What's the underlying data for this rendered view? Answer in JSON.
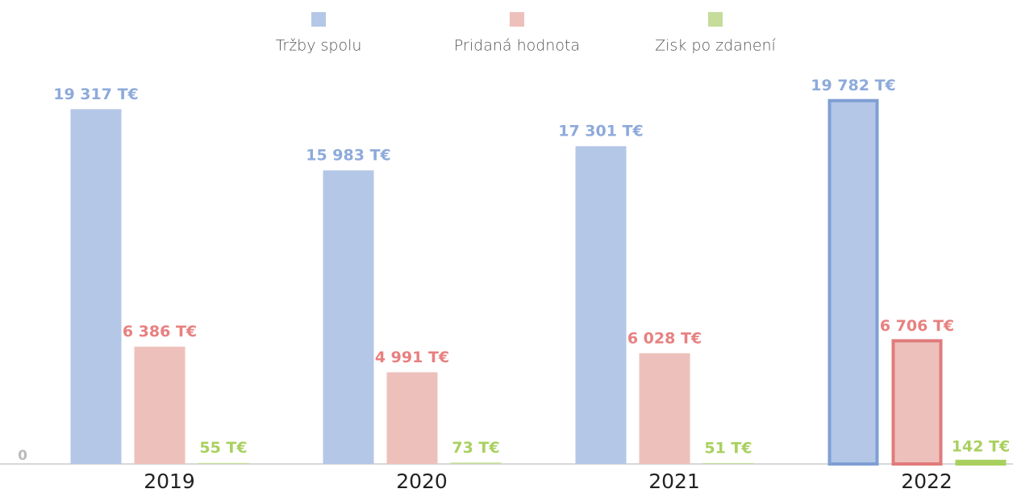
{
  "chart_data": {
    "type": "bar",
    "categories": [
      "2019",
      "2020",
      "2021",
      "2022"
    ],
    "series": [
      {
        "name": "Tržby spolu",
        "color": "#b4c7e7",
        "label_color": "#8eaadb",
        "edge_color": "#7f9fd3",
        "values": [
          19317,
          15983,
          17301,
          19782
        ],
        "value_labels": [
          "19 317 T€",
          "15 983 T€",
          "17 301 T€",
          "19 782 T€"
        ]
      },
      {
        "name": "Pridaná hodnota",
        "color": "#eec0bb",
        "label_color": "#e88080",
        "edge_color": "#e07b7b",
        "values": [
          6386,
          4991,
          6028,
          6706
        ],
        "value_labels": [
          "6 386 T€",
          "4 991 T€",
          "6 028 T€",
          "6 706 T€"
        ]
      },
      {
        "name": "Zisk po zdanení",
        "color": "#c5dc9a",
        "label_color": "#a9d05f",
        "edge_color": "#a9d05f",
        "values": [
          55,
          73,
          51,
          142
        ],
        "value_labels": [
          "55 T€",
          "73 T€",
          "51 T€",
          "142 T€"
        ]
      }
    ],
    "ylim": [
      0,
      21000
    ],
    "yticks": [
      0
    ],
    "highlighted_category": 3,
    "legend": "top"
  }
}
